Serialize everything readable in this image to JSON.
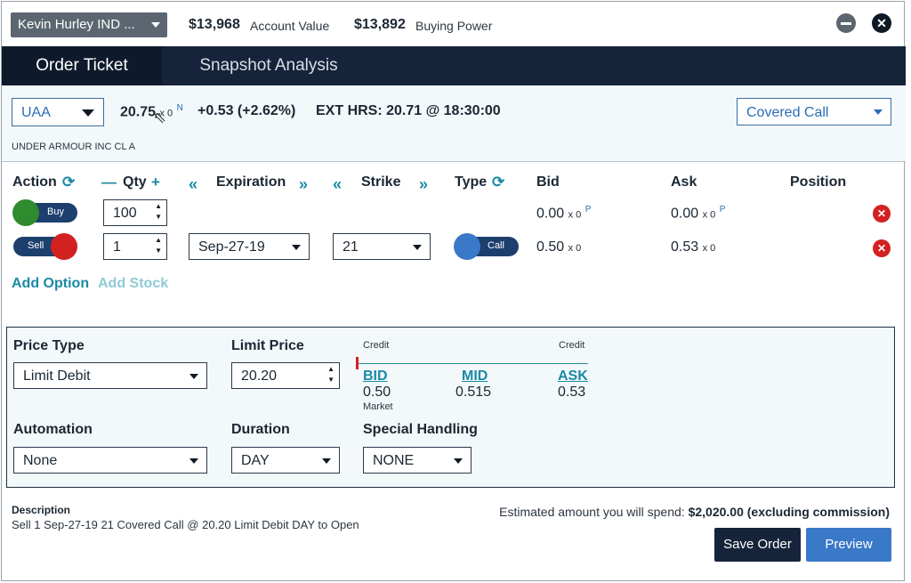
{
  "account": {
    "selector": "Kevin Hurley IND ...",
    "account_value": "$13,968",
    "account_value_label": "Account Value",
    "buying_power": "$13,892",
    "buying_power_label": "Buying Power"
  },
  "tabs": [
    {
      "label": "Order Ticket",
      "active": true
    },
    {
      "label": "Snapshot Analysis",
      "active": false
    }
  ],
  "symbol": {
    "ticker": "UAA",
    "last": "20.75",
    "last_size": "x 0",
    "last_exchange": "N",
    "change": "+0.53 (+2.62%)",
    "ext_hours": "EXT HRS: 20.71 @ 18:30:00",
    "description": "UNDER ARMOUR INC CL A",
    "strategy": "Covered Call"
  },
  "legs_header": {
    "action": "Action",
    "qty": "Qty",
    "expiration": "Expiration",
    "strike": "Strike",
    "type": "Type",
    "bid": "Bid",
    "ask": "Ask",
    "position": "Position"
  },
  "legs": [
    {
      "action": "Buy",
      "qty": "100",
      "expiration": "",
      "strike": "",
      "type": "",
      "bid": "0.00",
      "bid_size": "x 0",
      "bid_exch": "P",
      "ask": "0.00",
      "ask_size": "x 0",
      "ask_exch": "P"
    },
    {
      "action": "Sell",
      "qty": "1",
      "expiration": "Sep-27-19",
      "strike": "21",
      "type": "Call",
      "bid": "0.50",
      "bid_size": "x 0",
      "bid_exch": "",
      "ask": "0.53",
      "ask_size": "x 0",
      "ask_exch": ""
    }
  ],
  "links": {
    "add_option": "Add Option",
    "add_stock": "Add Stock"
  },
  "order": {
    "price_type_label": "Price Type",
    "price_type": "Limit Debit",
    "limit_price_label": "Limit Price",
    "limit_price": "20.20",
    "credit_left": "Credit",
    "credit_right": "Credit",
    "bid_label": "BID",
    "bid_value": "0.50",
    "mid_label": "MID",
    "mid_value": "0.515",
    "ask_label": "ASK",
    "ask_value": "0.53",
    "market_label": "Market",
    "automation_label": "Automation",
    "automation": "None",
    "duration_label": "Duration",
    "duration": "DAY",
    "special_label": "Special Handling",
    "special": "NONE"
  },
  "footer": {
    "description_label": "Description",
    "description": "Sell 1 Sep-27-19 21 Covered Call @ 20.20 Limit Debit DAY to Open",
    "estimate_prefix": "Estimated amount you will spend:",
    "estimate_value": "$2,020.00 (excluding commission)",
    "save_label": "Save Order",
    "preview_label": "Preview"
  },
  "colors": {
    "navy": "#15243a",
    "accent_teal": "#1a8aa5",
    "buy_green": "#2e8b2e",
    "sell_red": "#d32121",
    "call_blue": "#3a78c8"
  }
}
